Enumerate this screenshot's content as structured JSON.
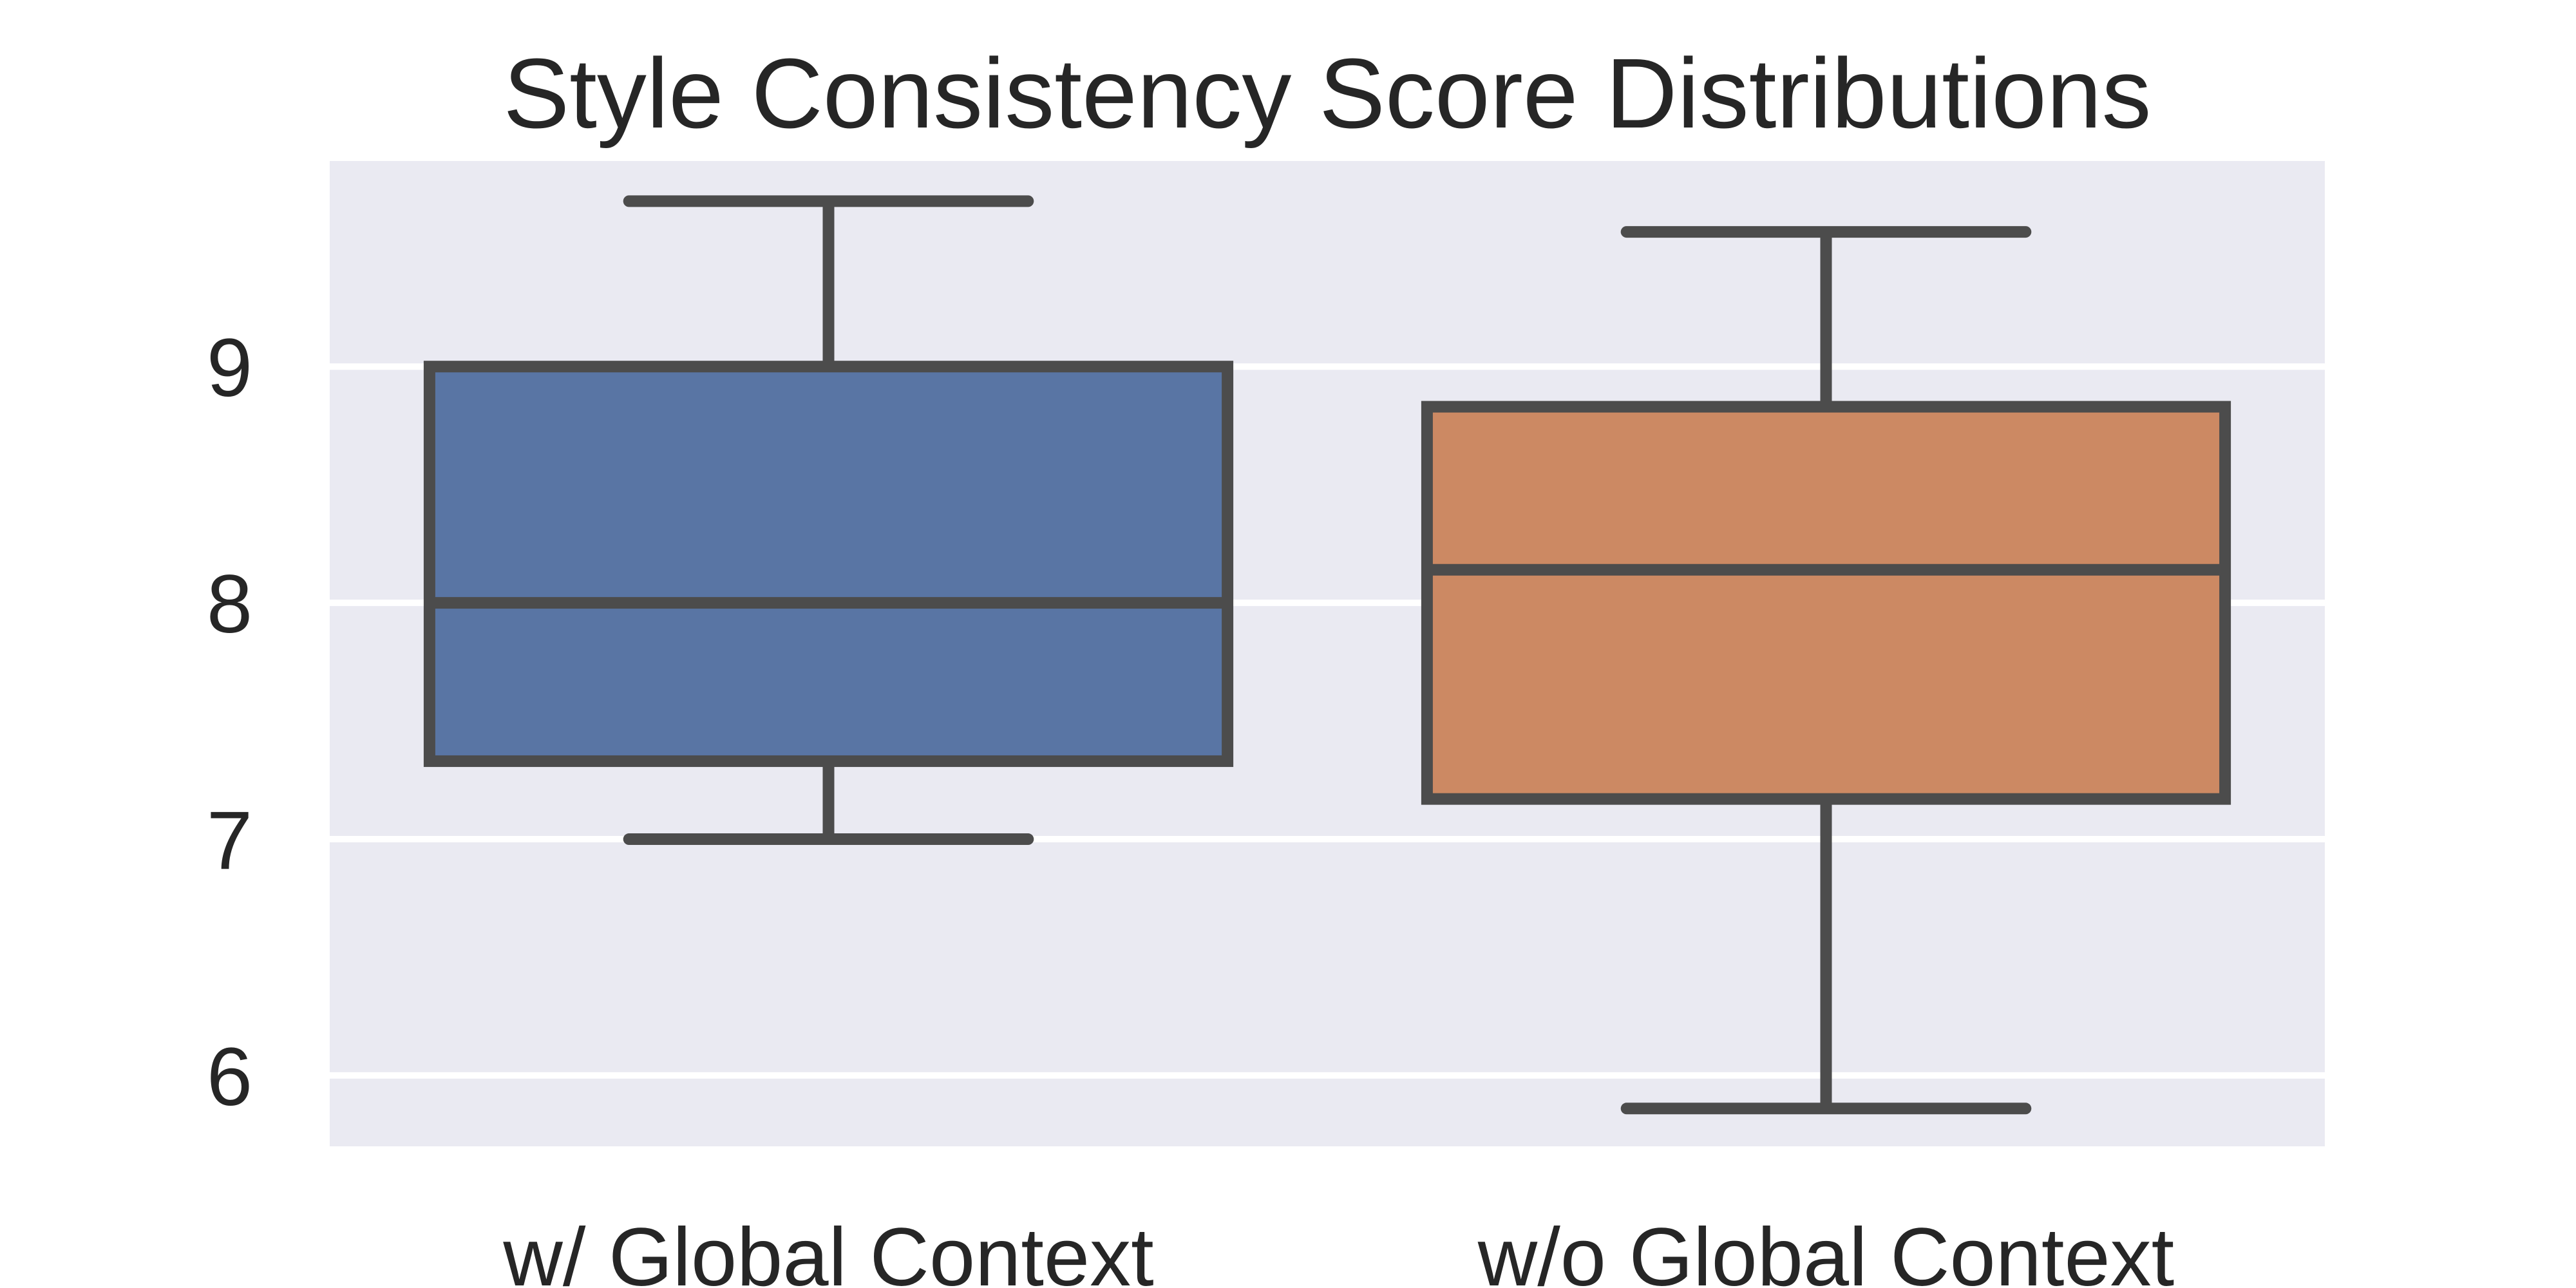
{
  "chart_data": {
    "type": "box",
    "title": "Style Consistency Score Distributions",
    "xlabel": "",
    "ylabel": "",
    "categories": [
      "w/ Global Context",
      "w/o Global Context"
    ],
    "ylim": [
      5.7,
      9.87
    ],
    "yticks": [
      6,
      7,
      8,
      9
    ],
    "grid": true,
    "legend": "none",
    "boxes": [
      {
        "category": "w/ Global Context",
        "whisker_low": 7.0,
        "q1": 7.33,
        "median": 8.0,
        "q3": 9.0,
        "whisker_high": 9.7,
        "color": "#5975A4"
      },
      {
        "category": "w/o Global Context",
        "whisker_low": 5.86,
        "q1": 7.17,
        "median": 8.14,
        "q3": 8.83,
        "whisker_high": 9.57,
        "color": "#CC8963"
      }
    ],
    "colors": {
      "background": "#EAEAF2",
      "grid": "#FFFFFF",
      "line": "#4C4C4C",
      "text": "#262626"
    }
  }
}
